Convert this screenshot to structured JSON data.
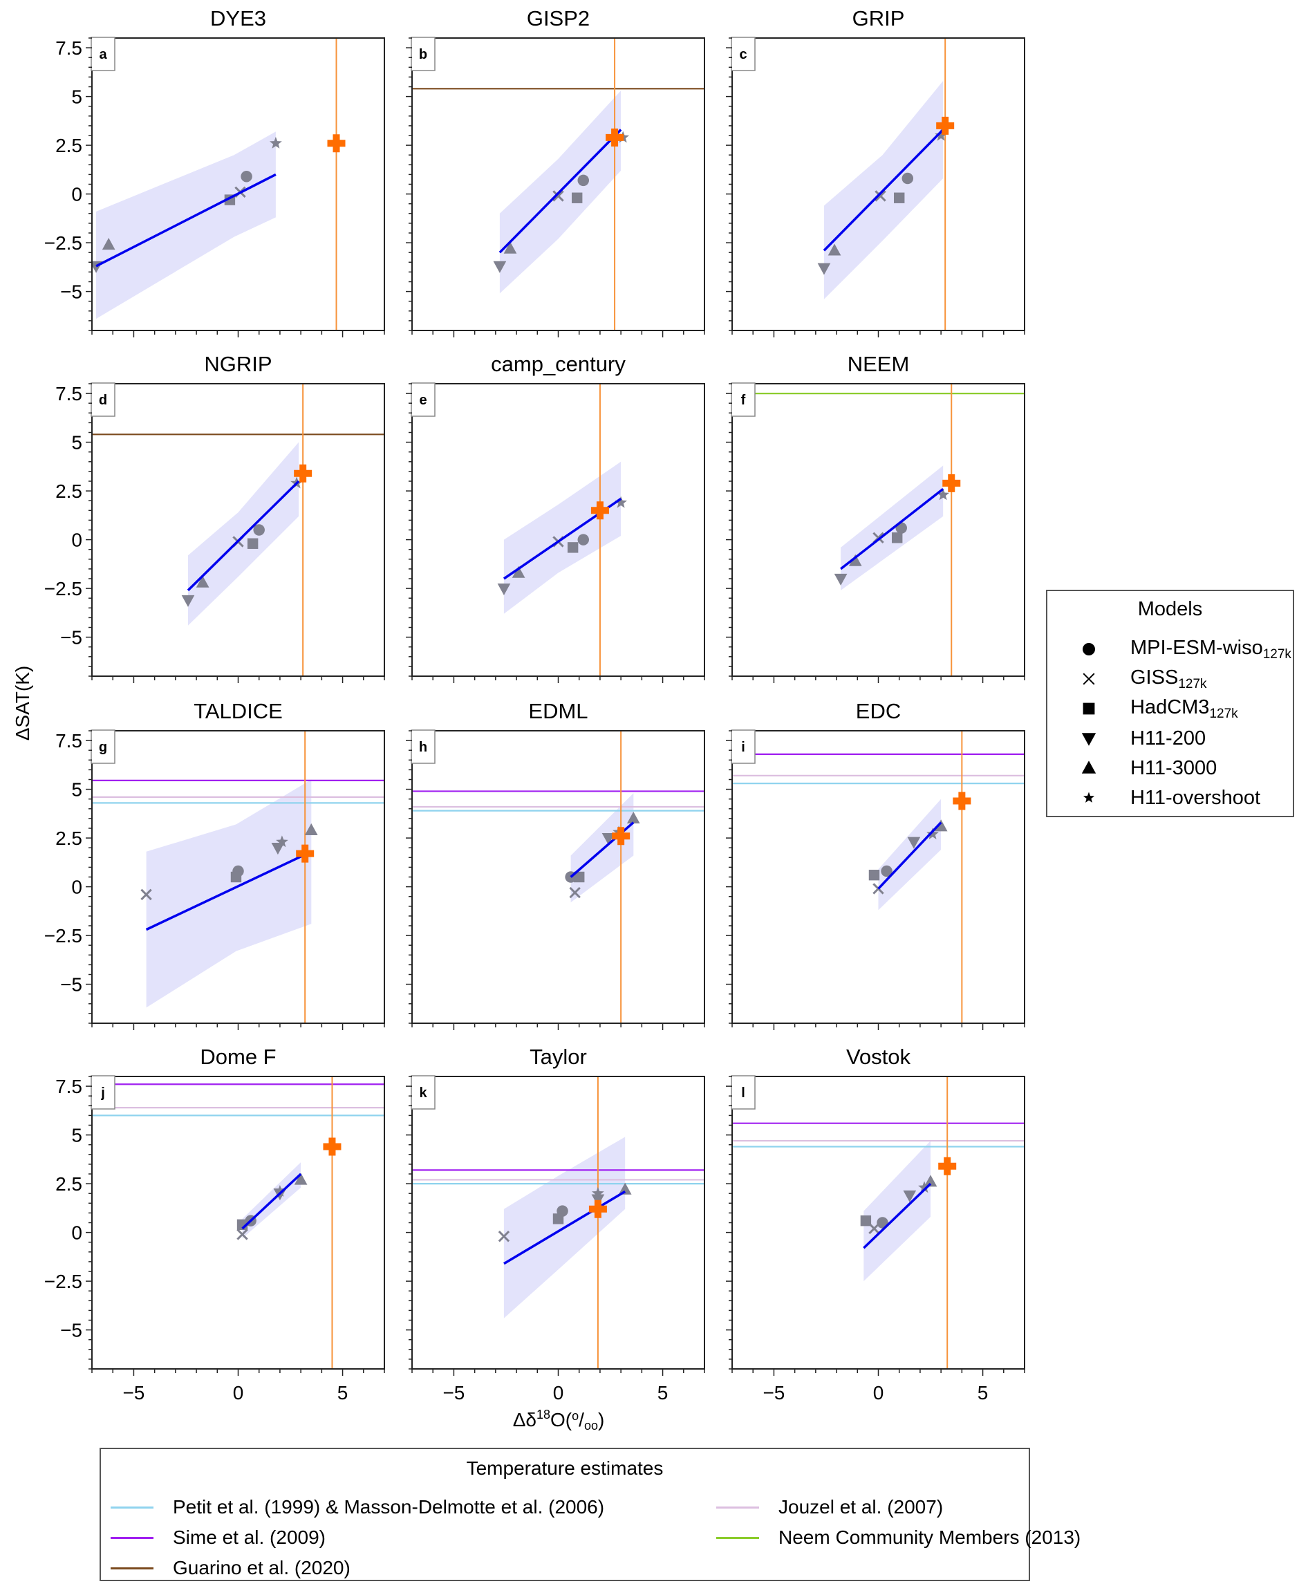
{
  "chart_data": {
    "type": "scatter",
    "figure_ylabel": "ΔSAT(K)",
    "figure_xlabel": {
      "prefix": "Δδ",
      "sup": "18",
      "mid": "O(",
      "permil_num": "o",
      "slash": "/",
      "permil_den": "oo",
      "suffix": ")"
    },
    "xlim": [
      -7,
      7
    ],
    "ylim": [
      -7,
      8
    ],
    "xticks": [
      -5,
      0,
      5
    ],
    "xtick_labels": [
      "−5",
      "0",
      "5"
    ],
    "yticks": [
      -5,
      -2.5,
      0,
      2.5,
      5,
      7.5
    ],
    "ytick_labels": [
      "−5",
      "−2.5",
      "0",
      "2.5",
      "5",
      "7.5"
    ],
    "grid": false,
    "colors": {
      "fit_line": "#0000ee",
      "ribbon": "#e3e3fb",
      "model_marker": "#80818f",
      "observation_marker": "#ff6d00",
      "observation_line": "#f7933b",
      "petit": "#8fd3ee",
      "sime": "#a020f0",
      "guarino": "#7b4a1e",
      "jouzel": "#dcbfe0",
      "neem": "#8ccc2c"
    },
    "models_legend": {
      "title": "Models",
      "items": [
        {
          "key": "mpi",
          "name": "MPI-ESM-wiso",
          "sub": "127k",
          "marker": "circle"
        },
        {
          "key": "giss",
          "name": "GISS",
          "sub": "127k",
          "marker": "x"
        },
        {
          "key": "hadcm3",
          "name": "HadCM3",
          "sub": "127k",
          "marker": "square"
        },
        {
          "key": "h200",
          "name": "H11-200",
          "sub": "",
          "marker": "triangle-down"
        },
        {
          "key": "h3000",
          "name": "H11-3000",
          "sub": "",
          "marker": "triangle-up"
        },
        {
          "key": "hover",
          "name": "H11-overshoot",
          "sub": "",
          "marker": "star"
        }
      ]
    },
    "temperature_legend": {
      "title": "Temperature estimates",
      "items": [
        {
          "key": "petit",
          "label": "Petit et al. (1999) & Masson-Delmotte et al. (2006)"
        },
        {
          "key": "jouzel",
          "label": "Jouzel et al. (2007)"
        },
        {
          "key": "sime",
          "label": "Sime et al. (2009)"
        },
        {
          "key": "neem",
          "label": "Neem Community Members (2013)"
        },
        {
          "key": "guarino",
          "label": "Guarino et al. (2020)"
        }
      ]
    },
    "panels": [
      {
        "letter": "a",
        "title": "DYE3",
        "fit": {
          "x": [
            -6.8,
            1.8
          ],
          "y": [
            -3.7,
            1.0
          ]
        },
        "ribbon": {
          "x": [
            -6.8,
            -0.2,
            1.8
          ],
          "upper": [
            -0.9,
            2.0,
            3.2
          ],
          "lower": [
            -6.4,
            -2.2,
            -1.2
          ]
        },
        "points": {
          "mpi": [
            0.4,
            0.9
          ],
          "giss": [
            0.1,
            0.1
          ],
          "hadcm3": [
            -0.4,
            -0.3
          ],
          "h200": [
            -6.8,
            -3.7
          ],
          "h3000": [
            -6.2,
            -2.6
          ],
          "hover": [
            1.8,
            2.6
          ]
        },
        "obs_dO18": 4.7,
        "obs_point": [
          4.7,
          2.6
        ],
        "estimates": {}
      },
      {
        "letter": "b",
        "title": "GISP2",
        "fit": {
          "x": [
            -2.8,
            3.0
          ],
          "y": [
            -3.0,
            3.3
          ]
        },
        "ribbon": {
          "x": [
            -2.8,
            0.0,
            3.0
          ],
          "upper": [
            -1.0,
            1.8,
            5.3
          ],
          "lower": [
            -5.1,
            -2.3,
            1.2
          ]
        },
        "points": {
          "mpi": [
            1.2,
            0.7
          ],
          "giss": [
            0.0,
            -0.1
          ],
          "hadcm3": [
            0.9,
            -0.2
          ],
          "h200": [
            -2.8,
            -3.7
          ],
          "h3000": [
            -2.3,
            -2.8
          ],
          "hover": [
            3.1,
            2.9
          ]
        },
        "obs_dO18": 2.7,
        "obs_point": [
          2.7,
          2.9
        ],
        "estimates": {
          "guarino": 5.4
        }
      },
      {
        "letter": "c",
        "title": "GRIP",
        "fit": {
          "x": [
            -2.6,
            3.1
          ],
          "y": [
            -2.9,
            3.3
          ]
        },
        "ribbon": {
          "x": [
            -2.6,
            0.2,
            3.1
          ],
          "upper": [
            -0.6,
            2.0,
            5.8
          ],
          "lower": [
            -5.4,
            -2.4,
            0.8
          ]
        },
        "points": {
          "mpi": [
            1.4,
            0.8
          ],
          "giss": [
            0.1,
            -0.1
          ],
          "hadcm3": [
            1.0,
            -0.2
          ],
          "h200": [
            -2.6,
            -3.8
          ],
          "h3000": [
            -2.1,
            -2.9
          ],
          "hover": [
            3.0,
            3.0
          ]
        },
        "obs_dO18": 3.2,
        "obs_point": [
          3.2,
          3.5
        ],
        "estimates": {}
      },
      {
        "letter": "d",
        "title": "NGRIP",
        "fit": {
          "x": [
            -2.4,
            2.9
          ],
          "y": [
            -2.6,
            3.0
          ]
        },
        "ribbon": {
          "x": [
            -2.4,
            0.0,
            2.9
          ],
          "upper": [
            -0.8,
            1.4,
            5.0
          ],
          "lower": [
            -4.4,
            -1.9,
            1.2
          ]
        },
        "points": {
          "mpi": [
            1.0,
            0.5
          ],
          "giss": [
            0.0,
            -0.1
          ],
          "hadcm3": [
            0.7,
            -0.2
          ],
          "h200": [
            -2.4,
            -3.1
          ],
          "h3000": [
            -1.7,
            -2.2
          ],
          "hover": [
            2.8,
            2.9
          ]
        },
        "obs_dO18": 3.1,
        "obs_point": [
          3.1,
          3.4
        ],
        "estimates": {
          "guarino": 5.4
        }
      },
      {
        "letter": "e",
        "title": "camp_century",
        "fit": {
          "x": [
            -2.6,
            3.0
          ],
          "y": [
            -2.0,
            2.1
          ]
        },
        "ribbon": {
          "x": [
            -2.6,
            0.0,
            3.0
          ],
          "upper": [
            0.0,
            1.8,
            4.0
          ],
          "lower": [
            -3.8,
            -1.7,
            0.2
          ]
        },
        "points": {
          "mpi": [
            1.2,
            0.0
          ],
          "giss": [
            0.0,
            -0.1
          ],
          "hadcm3": [
            0.7,
            -0.4
          ],
          "h200": [
            -2.6,
            -2.5
          ],
          "h3000": [
            -1.9,
            -1.7
          ],
          "hover": [
            3.0,
            1.9
          ]
        },
        "obs_dO18": 2.0,
        "obs_point": [
          2.0,
          1.5
        ],
        "estimates": {}
      },
      {
        "letter": "f",
        "title": "NEEM",
        "fit": {
          "x": [
            -1.8,
            3.1
          ],
          "y": [
            -1.5,
            2.6
          ]
        },
        "ribbon": {
          "x": [
            -1.8,
            3.1
          ],
          "upper": [
            -0.4,
            3.8
          ],
          "lower": [
            -2.6,
            1.2
          ]
        },
        "points": {
          "mpi": [
            1.1,
            0.6
          ],
          "giss": [
            0.0,
            0.1
          ],
          "hadcm3": [
            0.9,
            0.1
          ],
          "h200": [
            -1.8,
            -2.0
          ],
          "h3000": [
            -1.1,
            -1.1
          ],
          "hover": [
            3.1,
            2.3
          ]
        },
        "obs_dO18": 3.5,
        "obs_point": [
          3.5,
          2.9
        ],
        "estimates": {
          "neem": 7.5
        }
      },
      {
        "letter": "g",
        "title": "TALDICE",
        "fit": {
          "x": [
            -4.4,
            3.5
          ],
          "y": [
            -2.2,
            1.8
          ]
        },
        "ribbon": {
          "x": [
            -4.4,
            -0.1,
            3.5
          ],
          "upper": [
            1.8,
            3.2,
            5.5
          ],
          "lower": [
            -6.2,
            -3.3,
            -1.9
          ]
        },
        "points": {
          "mpi": [
            0.0,
            0.8
          ],
          "giss": [
            -4.4,
            -0.4
          ],
          "hadcm3": [
            -0.1,
            0.5
          ],
          "h200": [
            1.9,
            2.0
          ],
          "h3000": [
            3.5,
            2.9
          ],
          "hover": [
            2.1,
            2.3
          ]
        },
        "obs_dO18": 3.2,
        "obs_point": [
          3.2,
          1.7
        ],
        "estimates": {
          "sime": 5.45,
          "jouzel": 4.6,
          "petit": 4.3
        }
      },
      {
        "letter": "h",
        "title": "EDML",
        "fit": {
          "x": [
            0.6,
            3.6
          ],
          "y": [
            0.5,
            3.3
          ]
        },
        "ribbon": {
          "x": [
            0.6,
            3.6
          ],
          "upper": [
            1.6,
            4.8
          ],
          "lower": [
            -0.8,
            1.6
          ]
        },
        "points": {
          "mpi": [
            0.6,
            0.5
          ],
          "giss": [
            0.8,
            -0.3
          ],
          "hadcm3": [
            1.0,
            0.5
          ],
          "h200": [
            2.4,
            2.5
          ],
          "h3000": [
            3.6,
            3.5
          ],
          "hover": [
            2.9,
            2.8
          ]
        },
        "obs_dO18": 3.0,
        "obs_point": [
          3.0,
          2.6
        ],
        "estimates": {
          "sime": 4.9,
          "jouzel": 4.1,
          "petit": 3.9
        }
      },
      {
        "letter": "i",
        "title": "EDC",
        "fit": {
          "x": [
            0.0,
            3.0
          ],
          "y": [
            -0.1,
            3.3
          ]
        },
        "ribbon": {
          "x": [
            0.0,
            3.0
          ],
          "upper": [
            0.9,
            4.5
          ],
          "lower": [
            -1.2,
            1.9
          ]
        },
        "points": {
          "mpi": [
            0.4,
            0.8
          ],
          "giss": [
            0.0,
            -0.1
          ],
          "hadcm3": [
            -0.2,
            0.6
          ],
          "h200": [
            1.7,
            2.3
          ],
          "h3000": [
            3.0,
            3.1
          ],
          "hover": [
            2.6,
            2.7
          ]
        },
        "obs_dO18": 4.0,
        "obs_point": [
          4.0,
          4.4
        ],
        "estimates": {
          "sime": 6.8,
          "jouzel": 5.7,
          "petit": 5.3
        }
      },
      {
        "letter": "j",
        "title": "Dome F",
        "fit": {
          "x": [
            0.2,
            3.0
          ],
          "y": [
            0.2,
            3.0
          ]
        },
        "ribbon": {
          "x": [
            0.2,
            3.0
          ],
          "upper": [
            0.7,
            3.6
          ],
          "lower": [
            -0.3,
            2.3
          ]
        },
        "points": {
          "mpi": [
            0.6,
            0.6
          ],
          "giss": [
            0.2,
            -0.1
          ],
          "hadcm3": [
            0.2,
            0.4
          ],
          "h200": [
            2.0,
            2.0
          ],
          "h3000": [
            3.0,
            2.7
          ],
          "hover": [
            2.0,
            2.1
          ]
        },
        "obs_dO18": 4.5,
        "obs_point": [
          4.5,
          4.4
        ],
        "estimates": {
          "sime": 7.6,
          "jouzel": 6.4,
          "petit": 6.0
        }
      },
      {
        "letter": "k",
        "title": "Taylor",
        "fit": {
          "x": [
            -2.6,
            3.2
          ],
          "y": [
            -1.6,
            2.1
          ]
        },
        "ribbon": {
          "x": [
            -2.6,
            0.0,
            3.2
          ],
          "upper": [
            1.2,
            2.9,
            4.9
          ],
          "lower": [
            -4.4,
            -1.9,
            1.2
          ]
        },
        "points": {
          "mpi": [
            0.2,
            1.1
          ],
          "giss": [
            -2.6,
            -0.2
          ],
          "hadcm3": [
            0.0,
            0.7
          ],
          "h200": [
            1.9,
            1.7
          ],
          "h3000": [
            3.2,
            2.2
          ],
          "hover": [
            1.9,
            2.0
          ]
        },
        "obs_dO18": 1.9,
        "obs_point": [
          1.9,
          1.2
        ],
        "estimates": {
          "sime": 3.2,
          "jouzel": 2.7,
          "petit": 2.5
        }
      },
      {
        "letter": "l",
        "title": "Vostok",
        "fit": {
          "x": [
            -0.7,
            2.5
          ],
          "y": [
            -0.8,
            2.5
          ]
        },
        "ribbon": {
          "x": [
            -0.7,
            2.5
          ],
          "upper": [
            1.1,
            4.7
          ],
          "lower": [
            -2.5,
            0.8
          ]
        },
        "points": {
          "mpi": [
            0.2,
            0.5
          ],
          "giss": [
            -0.2,
            0.2
          ],
          "hadcm3": [
            -0.6,
            0.6
          ],
          "h200": [
            1.5,
            1.9
          ],
          "h3000": [
            2.5,
            2.6
          ],
          "hover": [
            2.2,
            2.3
          ]
        },
        "obs_dO18": 3.3,
        "obs_point": [
          3.3,
          3.4
        ],
        "estimates": {
          "sime": 5.6,
          "jouzel": 4.7,
          "petit": 4.4
        }
      }
    ]
  }
}
